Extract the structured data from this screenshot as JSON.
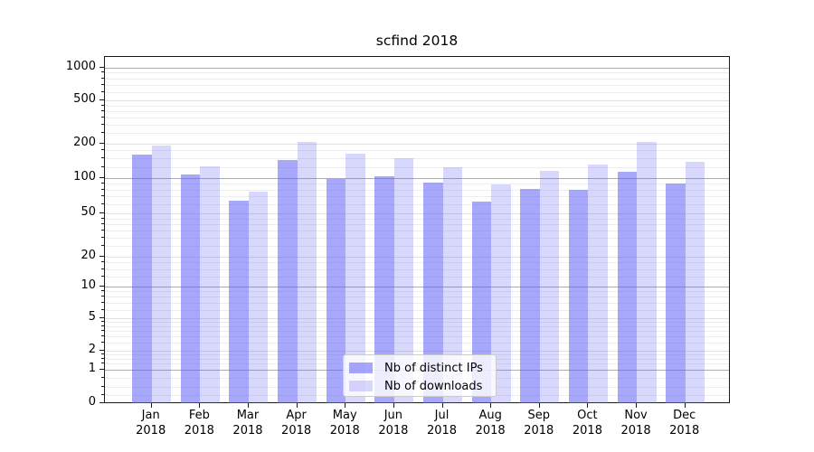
{
  "title": "scfind 2018",
  "legend": {
    "items": [
      {
        "label": "Nb of distinct IPs"
      },
      {
        "label": "Nb of downloads"
      }
    ]
  },
  "colors": {
    "ips_bar": "rgba(98,98,248,0.56)",
    "downloads_bar": "rgba(98,98,248,0.25)",
    "grid_major": "#ababab",
    "grid_labeled": "#e1e1e1",
    "grid_minor": "#ededed",
    "axis_frame": "#1a1a1a",
    "text": "#000000"
  },
  "chart_data": {
    "type": "bar",
    "title": "scfind 2018",
    "categories": [
      "Jan 2018",
      "Feb 2018",
      "Mar 2018",
      "Apr 2018",
      "May 2018",
      "Jun 2018",
      "Jul 2018",
      "Aug 2018",
      "Sep 2018",
      "Oct 2018",
      "Nov 2018",
      "Dec 2018"
    ],
    "series": [
      {
        "name": "Nb of distinct IPs",
        "values": [
          162,
          107,
          64,
          145,
          99,
          103,
          92,
          63,
          81,
          80,
          113,
          90
        ]
      },
      {
        "name": "Nb of downloads",
        "values": [
          194,
          127,
          76,
          207,
          164,
          150,
          125,
          89,
          116,
          132,
          209,
          140
        ]
      }
    ],
    "yscale": "symlog",
    "yticks": [
      0,
      1,
      2,
      5,
      10,
      20,
      50,
      100,
      200,
      500,
      1000
    ],
    "ylim": [
      0,
      1000
    ],
    "xlabel": "",
    "ylabel": "",
    "grid": true,
    "legend_position": "lower center"
  }
}
